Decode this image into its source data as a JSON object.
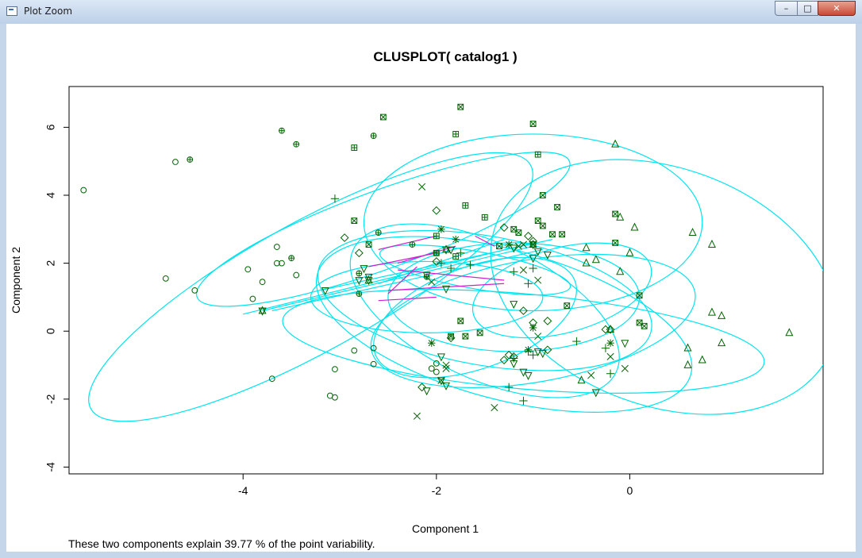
{
  "window": {
    "title": "Plot Zoom",
    "min_icon": "minimize-icon",
    "max_icon": "maximize-icon",
    "close_icon": "close-icon",
    "min_glyph": "–",
    "max_glyph": "□",
    "close_glyph": "✕"
  },
  "colors": {
    "ellipse": "#00e5ee",
    "segment": "#d020d0",
    "point": "#006400",
    "line": "#00e5ee"
  },
  "chart_data": {
    "type": "scatter",
    "title": "CLUSPLOT( catalog1 )",
    "xlabel": "Component 1",
    "ylabel": "Component 2",
    "subtitle": "These two components explain 39.77 % of the point variability.",
    "xlim": [
      -5.8,
      2.0
    ],
    "ylim": [
      -4.2,
      7.2
    ],
    "xticks": [
      -4,
      -2,
      0
    ],
    "yticks": [
      -4,
      -2,
      0,
      2,
      4,
      6
    ],
    "grid": false,
    "legend": "none",
    "ellipses": [
      {
        "cx": -3.3,
        "cy": 1.3,
        "rx": 2.6,
        "ry": 1.9,
        "angle": -29
      },
      {
        "cx": -2.55,
        "cy": 3.0,
        "rx": 2.05,
        "ry": 1.15,
        "angle": -20
      },
      {
        "cx": -1.0,
        "cy": 3.2,
        "rx": 1.75,
        "ry": 2.6,
        "angle": 0
      },
      {
        "cx": 0.35,
        "cy": 1.3,
        "rx": 1.85,
        "ry": 3.5,
        "angle": 20
      },
      {
        "cx": -1.5,
        "cy": 0.9,
        "rx": 1.75,
        "ry": 1.9,
        "angle": 10
      },
      {
        "cx": -1.3,
        "cy": 0.2,
        "rx": 2.0,
        "ry": 2.2,
        "angle": 15
      },
      {
        "cx": -1.0,
        "cy": 0.3,
        "rx": 1.7,
        "ry": 1.8,
        "angle": -10
      },
      {
        "cx": -1.5,
        "cy": 0.6,
        "rx": 1.5,
        "ry": 2.0,
        "angle": 25
      },
      {
        "cx": -1.1,
        "cy": -0.3,
        "rx": 2.5,
        "ry": 1.4,
        "angle": 5
      },
      {
        "cx": -1.2,
        "cy": 1.0,
        "rx": 1.3,
        "ry": 1.6,
        "angle": 0
      },
      {
        "cx": -1.6,
        "cy": 0.4,
        "rx": 1.1,
        "ry": 1.5,
        "angle": -20
      },
      {
        "cx": -2.1,
        "cy": 1.0,
        "rx": 1.2,
        "ry": 1.05,
        "angle": 0
      },
      {
        "cx": -1.6,
        "cy": 1.8,
        "rx": 1.0,
        "ry": 0.55,
        "angle": 10
      },
      {
        "cx": -0.7,
        "cy": 1.2,
        "rx": 0.95,
        "ry": 1.25,
        "angle": -15
      }
    ],
    "center_lines": [
      [
        [
          -4.0,
          0.5
        ],
        [
          -1.0,
          2.6
        ]
      ],
      [
        [
          -3.7,
          0.6
        ],
        [
          -0.9,
          2.4
        ]
      ],
      [
        [
          -3.2,
          1.2
        ],
        [
          -0.8,
          2.7
        ]
      ],
      [
        [
          -2.6,
          1.4
        ],
        [
          -1.3,
          2.7
        ]
      ],
      [
        [
          -3.8,
          0.6
        ],
        [
          -1.0,
          2.5
        ]
      ]
    ],
    "segments": [
      [
        [
          -2.7,
          1.9
        ],
        [
          -2.0,
          2.3
        ]
      ],
      [
        [
          -2.6,
          2.4
        ],
        [
          -2.0,
          2.8
        ]
      ],
      [
        [
          -1.6,
          2.8
        ],
        [
          -1.4,
          2.5
        ]
      ],
      [
        [
          -2.4,
          1.8
        ],
        [
          -1.3,
          1.5
        ]
      ],
      [
        [
          -2.2,
          1.9
        ],
        [
          -2.5,
          1.1
        ]
      ],
      [
        [
          -2.5,
          1.2
        ],
        [
          -1.3,
          1.4
        ]
      ],
      [
        [
          -2.6,
          0.9
        ],
        [
          -2.0,
          1.0
        ]
      ],
      [
        [
          -2.4,
          2.0
        ],
        [
          -1.8,
          2.5
        ]
      ]
    ],
    "series": [
      {
        "symbol": "circle",
        "points": [
          [
            -5.65,
            4.15
          ],
          [
            -4.7,
            4.98
          ],
          [
            -4.8,
            1.55
          ],
          [
            -4.5,
            1.2
          ],
          [
            -3.95,
            1.82
          ],
          [
            -3.9,
            0.95
          ],
          [
            -3.8,
            1.45
          ],
          [
            -3.65,
            2.48
          ],
          [
            -3.6,
            2.0
          ],
          [
            -3.65,
            2.0
          ],
          [
            -3.45,
            1.65
          ],
          [
            -3.7,
            -1.4
          ],
          [
            -3.1,
            -1.9
          ],
          [
            -3.05,
            -1.95
          ],
          [
            -3.05,
            -1.12
          ],
          [
            -2.85,
            -0.57
          ],
          [
            -2.65,
            -0.5
          ],
          [
            -2.65,
            -0.97
          ],
          [
            -2.05,
            -1.1
          ],
          [
            -2.0,
            -1.2
          ],
          [
            -2.0,
            -0.95
          ]
        ]
      },
      {
        "symbol": "circle-plus",
        "points": [
          [
            -4.55,
            5.05
          ],
          [
            -3.6,
            5.9
          ],
          [
            -3.45,
            5.5
          ],
          [
            -2.65,
            5.75
          ],
          [
            -3.5,
            2.15
          ],
          [
            -2.8,
            1.7
          ],
          [
            -2.6,
            2.9
          ],
          [
            -2.25,
            2.55
          ],
          [
            -2.8,
            1.1
          ],
          [
            -2.1,
            1.6
          ],
          [
            -2.0,
            2.3
          ]
        ]
      },
      {
        "symbol": "triangle",
        "points": [
          [
            -0.15,
            5.5
          ],
          [
            -0.1,
            3.35
          ],
          [
            0.05,
            3.05
          ],
          [
            0.65,
            2.9
          ],
          [
            0.85,
            2.55
          ],
          [
            -0.35,
            2.1
          ],
          [
            -0.45,
            2.45
          ],
          [
            -0.1,
            1.75
          ],
          [
            0.0,
            2.3
          ],
          [
            -0.45,
            2.0
          ],
          [
            0.85,
            0.55
          ],
          [
            0.95,
            0.45
          ],
          [
            0.95,
            -0.35
          ],
          [
            0.6,
            -0.5
          ],
          [
            0.6,
            -1.0
          ],
          [
            0.75,
            -0.85
          ],
          [
            1.65,
            -0.05
          ],
          [
            -0.2,
            0.05
          ],
          [
            -0.5,
            -1.45
          ]
        ]
      },
      {
        "symbol": "square-cross",
        "points": [
          [
            -2.55,
            6.3
          ],
          [
            -1.75,
            6.6
          ],
          [
            -1.0,
            6.1
          ],
          [
            -0.9,
            4.0
          ],
          [
            -0.75,
            3.65
          ],
          [
            -0.95,
            3.25
          ],
          [
            -0.9,
            3.1
          ],
          [
            -0.8,
            2.85
          ],
          [
            -0.7,
            2.85
          ],
          [
            -1.2,
            3.0
          ],
          [
            -1.15,
            2.9
          ],
          [
            -1.0,
            2.55
          ],
          [
            -1.35,
            2.5
          ],
          [
            -0.15,
            3.45
          ],
          [
            -0.15,
            2.6
          ],
          [
            0.1,
            1.05
          ],
          [
            0.1,
            0.25
          ],
          [
            0.15,
            0.15
          ],
          [
            -0.65,
            0.75
          ],
          [
            -1.75,
            0.3
          ],
          [
            -1.55,
            -0.05
          ],
          [
            -1.7,
            -0.15
          ],
          [
            -1.85,
            -0.15
          ],
          [
            -2.85,
            3.25
          ],
          [
            -2.7,
            2.55
          ]
        ]
      },
      {
        "symbol": "square-plus",
        "points": [
          [
            -2.85,
            5.4
          ],
          [
            -1.8,
            5.8
          ],
          [
            -0.95,
            5.2
          ],
          [
            -2.0,
            2.8
          ],
          [
            -1.5,
            3.35
          ],
          [
            -1.7,
            3.7
          ],
          [
            -1.8,
            2.2
          ],
          [
            -2.0,
            2.3
          ]
        ]
      },
      {
        "symbol": "diamond",
        "points": [
          [
            -2.95,
            2.75
          ],
          [
            -2.8,
            2.3
          ],
          [
            -2.0,
            3.55
          ],
          [
            -1.3,
            3.05
          ],
          [
            -1.05,
            2.8
          ],
          [
            -1.0,
            2.65
          ],
          [
            -2.0,
            2.05
          ],
          [
            -1.1,
            0.6
          ],
          [
            -1.0,
            0.25
          ],
          [
            -0.85,
            0.3
          ],
          [
            -0.85,
            -0.55
          ],
          [
            -0.2,
            0.05
          ],
          [
            -0.25,
            0.05
          ],
          [
            -1.85,
            -0.2
          ],
          [
            -1.2,
            -0.75
          ],
          [
            -1.25,
            -0.7
          ],
          [
            -1.3,
            -0.85
          ],
          [
            -2.15,
            -1.65
          ]
        ]
      },
      {
        "symbol": "triangle-down",
        "points": [
          [
            -3.15,
            1.2
          ],
          [
            -2.75,
            1.85
          ],
          [
            -2.8,
            1.5
          ],
          [
            -2.7,
            1.6
          ],
          [
            -2.1,
            1.65
          ],
          [
            -1.95,
            -0.75
          ],
          [
            -1.9,
            -1.6
          ],
          [
            -2.1,
            -1.75
          ],
          [
            -1.95,
            -1.45
          ],
          [
            -1.9,
            1.25
          ],
          [
            -1.85,
            2.4
          ],
          [
            -1.2,
            2.45
          ],
          [
            -1.2,
            0.8
          ],
          [
            -1.0,
            2.15
          ],
          [
            -0.95,
            2.35
          ],
          [
            -0.85,
            2.25
          ],
          [
            -0.95,
            -0.6
          ],
          [
            -0.9,
            -0.65
          ],
          [
            -0.35,
            -1.8
          ],
          [
            -0.05,
            -0.35
          ],
          [
            -1.1,
            -1.2
          ],
          [
            -1.05,
            -1.3
          ],
          [
            -3.8,
            0.6
          ],
          [
            -1.2,
            -0.95
          ]
        ]
      },
      {
        "symbol": "plus",
        "points": [
          [
            -3.05,
            3.9
          ],
          [
            -1.75,
            2.3
          ],
          [
            -1.85,
            1.85
          ],
          [
            -1.95,
            2.0
          ],
          [
            -1.65,
            1.95
          ],
          [
            -1.2,
            1.75
          ],
          [
            -1.0,
            1.85
          ],
          [
            -1.05,
            1.4
          ],
          [
            -1.2,
            -0.8
          ],
          [
            -1.05,
            -0.6
          ],
          [
            -1.0,
            -0.7
          ],
          [
            -1.25,
            -1.65
          ],
          [
            -1.1,
            -2.05
          ],
          [
            -0.2,
            -1.25
          ],
          [
            -0.55,
            -0.3
          ],
          [
            -0.25,
            -0.5
          ]
        ]
      },
      {
        "symbol": "cross",
        "points": [
          [
            -2.15,
            4.25
          ],
          [
            -2.05,
            1.45
          ],
          [
            -1.9,
            -1.0
          ],
          [
            -1.9,
            -1.1
          ],
          [
            -1.95,
            -1.45
          ],
          [
            -2.2,
            -2.5
          ],
          [
            -1.4,
            -2.25
          ],
          [
            -0.95,
            -0.15
          ],
          [
            -0.95,
            1.5
          ],
          [
            -1.1,
            1.8
          ],
          [
            -1.1,
            2.55
          ],
          [
            -1.15,
            2.5
          ],
          [
            -0.2,
            -0.75
          ],
          [
            -0.05,
            -1.1
          ],
          [
            -0.4,
            -1.3
          ]
        ]
      },
      {
        "symbol": "asterisk",
        "points": [
          [
            -1.95,
            3.0
          ],
          [
            -1.8,
            2.7
          ],
          [
            -1.25,
            2.55
          ],
          [
            -1.0,
            0.1
          ],
          [
            -2.05,
            -0.35
          ],
          [
            -0.2,
            -0.35
          ],
          [
            -1.05,
            -0.55
          ]
        ]
      },
      {
        "symbol": "triangle-down-cross",
        "points": [
          [
            -3.8,
            0.6
          ],
          [
            -2.7,
            1.5
          ],
          [
            -1.9,
            2.4
          ],
          [
            -1.0,
            2.55
          ]
        ]
      }
    ]
  }
}
